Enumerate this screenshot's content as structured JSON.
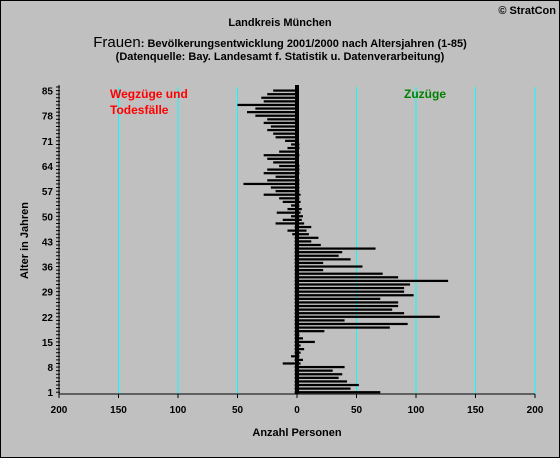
{
  "header": {
    "copyright": "© StratCon",
    "region": "Landkreis München",
    "title_prefix": "Frauen",
    "title_rest": ": Bevölkerungsentwicklung 2001/2000  nach Altersjahren (1-85)",
    "source": "(Datenquelle: Bay. Landesamt f. Statistik u. Datenverarbeitung)"
  },
  "colors": {
    "background": "#c0c0c0",
    "bars": "#000000",
    "gridlines": "#00ffff",
    "left_label": "#ff0000",
    "right_label": "#008000"
  },
  "chart_data": {
    "type": "bar",
    "orientation": "horizontal",
    "title": "Frauen: Bevölkerungsentwicklung 2001/2000  nach Altersjahren (1-85)",
    "xlabel": "Anzahl Personen",
    "ylabel": "Alter in Jahren",
    "xlim": [
      -200,
      200
    ],
    "ylim": [
      1,
      85
    ],
    "x_ticks": [
      -200,
      -150,
      -100,
      -50,
      0,
      50,
      100,
      150,
      200
    ],
    "x_tick_labels": [
      "200",
      "150",
      "100",
      "50",
      "0",
      "50",
      "100",
      "150",
      "200"
    ],
    "y_ticks": [
      1,
      8,
      15,
      22,
      29,
      36,
      43,
      50,
      57,
      64,
      71,
      78,
      85
    ],
    "grid": "vertical",
    "annotations": {
      "left_line1": "Wegzüge und",
      "left_line2": "Todesfälle",
      "right": "Zuzüge"
    },
    "series": [
      {
        "name": "Zuzüge",
        "ages": [
          1,
          2,
          3,
          4,
          5,
          6,
          7,
          8,
          9,
          10,
          11,
          12,
          13,
          14,
          15,
          16,
          17,
          18,
          19,
          20,
          21,
          22,
          23,
          24,
          25,
          26,
          27,
          28,
          29,
          30,
          31,
          32,
          33,
          34,
          35,
          36,
          37,
          38,
          39,
          40,
          41,
          42,
          43,
          44,
          45,
          46,
          47,
          48,
          49,
          50,
          51,
          52,
          53,
          54,
          55,
          56,
          57,
          58,
          59,
          60,
          61,
          62,
          63,
          64,
          65,
          66,
          67,
          68,
          69,
          70,
          71,
          72,
          73,
          74,
          75,
          76,
          77,
          78,
          79,
          80,
          81,
          82,
          83,
          84,
          85
        ],
        "values": [
          70,
          45,
          52,
          42,
          35,
          38,
          30,
          40,
          3,
          5,
          2,
          3,
          6,
          3,
          15,
          5,
          2,
          23,
          78,
          93,
          40,
          120,
          90,
          80,
          85,
          85,
          70,
          98,
          90,
          90,
          95,
          127,
          85,
          72,
          22,
          55,
          22,
          45,
          35,
          38,
          66,
          20,
          12,
          18,
          10,
          8,
          12,
          6,
          4,
          5,
          3,
          4,
          2,
          3,
          2,
          3,
          2,
          2,
          2,
          2,
          1,
          2,
          2,
          2,
          1,
          1,
          2,
          1,
          2,
          2,
          1,
          1,
          1,
          1,
          1,
          1,
          1,
          1,
          1,
          1,
          1,
          1,
          1,
          1,
          1
        ]
      },
      {
        "name": "Wegzüge und Todesfälle",
        "ages": [
          1,
          2,
          3,
          4,
          5,
          6,
          7,
          8,
          9,
          10,
          11,
          12,
          13,
          14,
          15,
          16,
          17,
          18,
          19,
          20,
          21,
          22,
          23,
          24,
          25,
          26,
          27,
          28,
          29,
          30,
          31,
          32,
          33,
          34,
          35,
          36,
          37,
          38,
          39,
          40,
          41,
          42,
          43,
          44,
          45,
          46,
          47,
          48,
          49,
          50,
          51,
          52,
          53,
          54,
          55,
          56,
          57,
          58,
          59,
          60,
          61,
          62,
          63,
          64,
          65,
          66,
          67,
          68,
          69,
          70,
          71,
          72,
          73,
          74,
          75,
          76,
          77,
          78,
          79,
          80,
          81,
          82,
          83,
          84,
          85
        ],
        "values": [
          -2,
          -2,
          -2,
          -2,
          -2,
          -2,
          -2,
          -2,
          -12,
          -2,
          -5,
          -2,
          -2,
          -2,
          -2,
          -2,
          -2,
          -2,
          -2,
          -2,
          -2,
          -2,
          -2,
          -2,
          -2,
          -2,
          -2,
          -2,
          -2,
          -2,
          -2,
          -2,
          -2,
          -2,
          -2,
          -2,
          -2,
          -2,
          -2,
          -2,
          -2,
          -2,
          -2,
          -2,
          -4,
          -8,
          -2,
          -18,
          -12,
          -5,
          -17,
          -8,
          -5,
          -12,
          -15,
          -28,
          -18,
          -22,
          -45,
          -25,
          -18,
          -28,
          -25,
          -15,
          -20,
          -25,
          -28,
          -15,
          -8,
          -5,
          -10,
          -18,
          -20,
          -25,
          -22,
          -28,
          -25,
          -35,
          -42,
          -35,
          -50,
          -28,
          -30,
          -25,
          -20
        ]
      }
    ]
  }
}
